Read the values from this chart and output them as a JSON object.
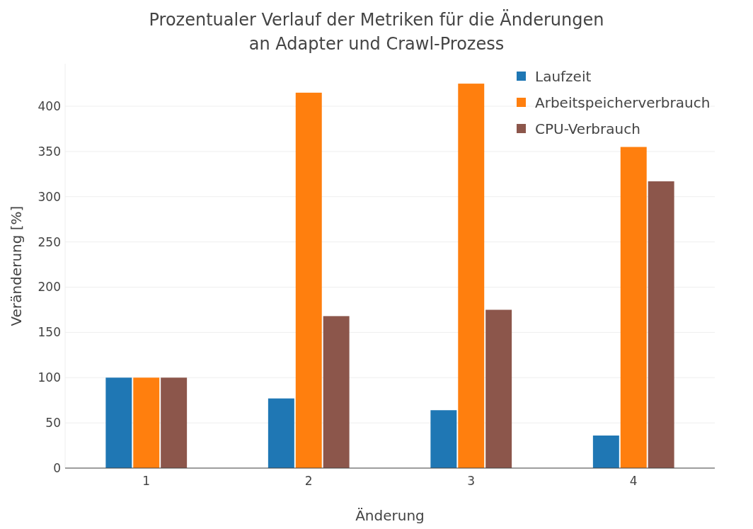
{
  "chart_data": {
    "type": "bar",
    "title": "Prozentualer Verlauf der Metriken für die Änderungen\nan Adapter und Crawl-Prozess",
    "xlabel": "Änderung",
    "ylabel": "Veränderung [%]",
    "categories": [
      "1",
      "2",
      "3",
      "4"
    ],
    "series": [
      {
        "name": "Laufzeit",
        "color": "#1f77b4",
        "values": [
          100,
          77,
          64,
          36
        ]
      },
      {
        "name": "Arbeitspeicherverbrauch",
        "color": "#ff7f0e",
        "values": [
          100,
          415,
          425,
          355
        ]
      },
      {
        "name": "CPU-Verbrauch",
        "color": "#8c564b",
        "values": [
          100,
          168,
          175,
          317
        ]
      }
    ],
    "ylim": [
      0,
      447
    ],
    "yticks": [
      0,
      50,
      100,
      150,
      200,
      250,
      300,
      350,
      400
    ],
    "grid": "y",
    "legend": "top right"
  }
}
